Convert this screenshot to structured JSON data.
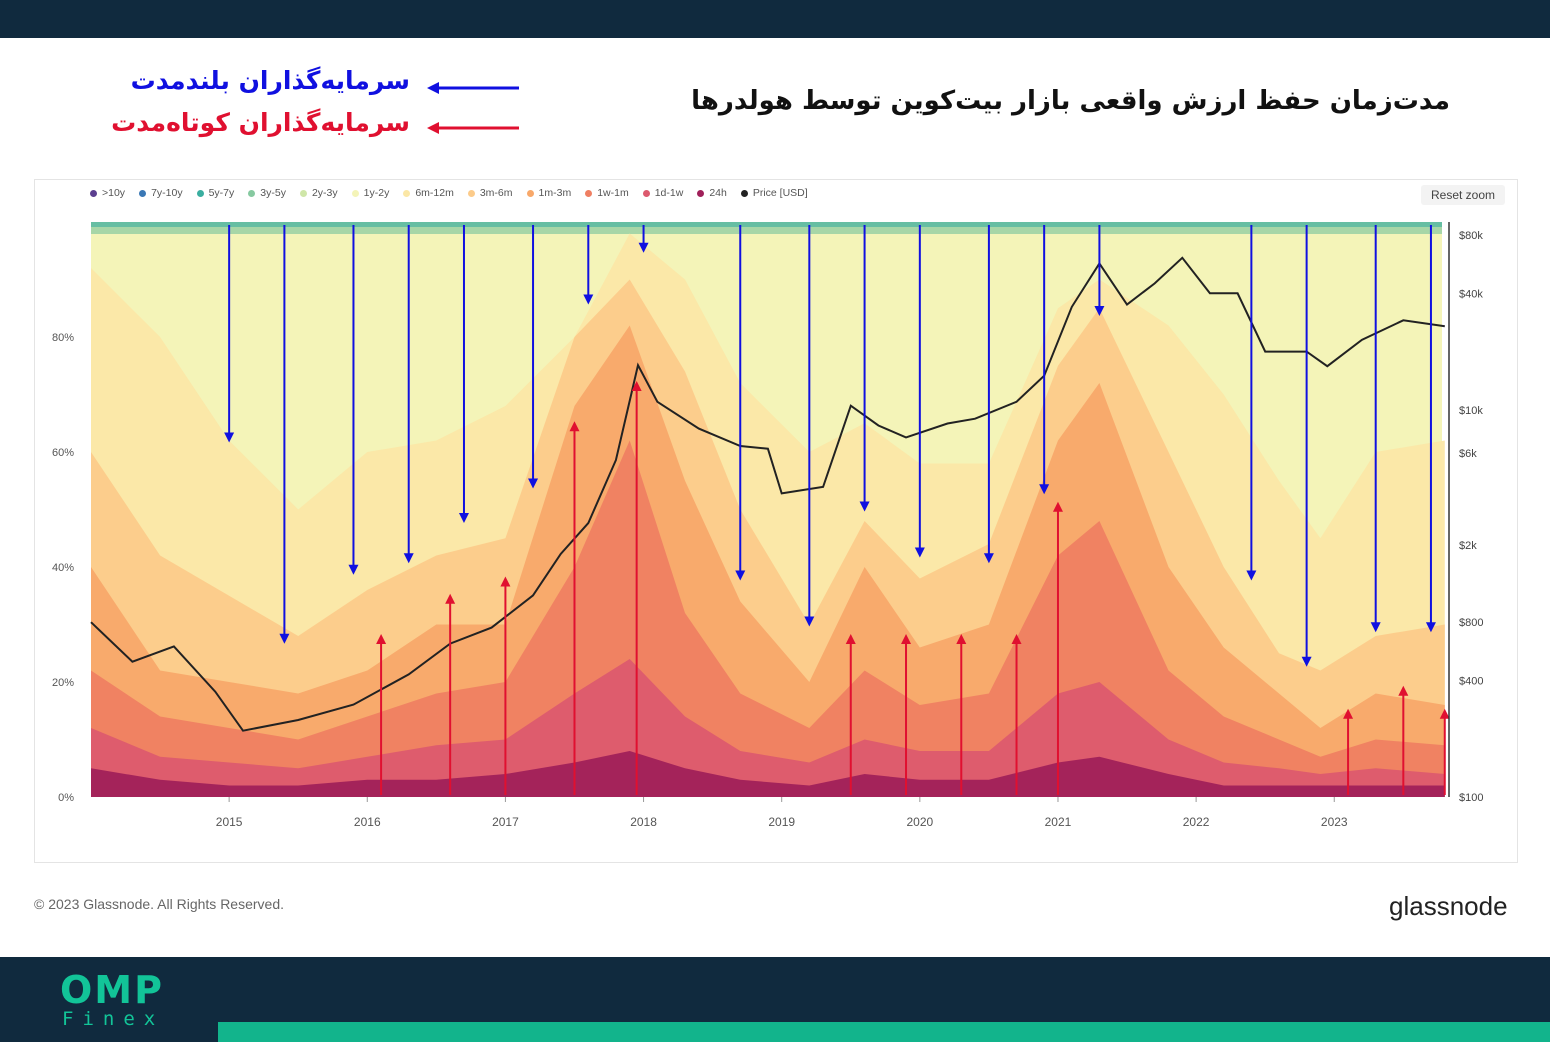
{
  "header": {
    "title": "مدت‌زمان حفظ ارزش واقعی بازار بیت‌کوین توسط هولدرها",
    "long_term_label": "سرمایه‌گذاران بلندمدت",
    "short_term_label": "سرمایه‌گذاران کوتاه‌مدت",
    "long_term_color": "#1010e0",
    "short_term_color": "#e01030"
  },
  "toolbar": {
    "reset_zoom": "Reset zoom"
  },
  "footer": {
    "copyright": "© 2023 Glassnode. All Rights Reserved.",
    "logo": "glassnode",
    "watermark": "glassnode",
    "brand_top": "OMP",
    "brand_bottom": "Finex"
  },
  "chart_data": {
    "type": "area",
    "title": "",
    "legend_position": "top-left",
    "legend": [
      {
        "label": ">10y",
        "color": "#5b3f8f"
      },
      {
        "label": "7y-10y",
        "color": "#3a78b5"
      },
      {
        "label": "5y-7y",
        "color": "#3aaea0"
      },
      {
        "label": "3y-5y",
        "color": "#86c9a0"
      },
      {
        "label": "2y-3y",
        "color": "#cfe6a8"
      },
      {
        "label": "1y-2y",
        "color": "#f4f4b8"
      },
      {
        "label": "6m-12m",
        "color": "#fbe7a6"
      },
      {
        "label": "3m-6m",
        "color": "#fccb8a"
      },
      {
        "label": "1m-3m",
        "color": "#f8a86a"
      },
      {
        "label": "1w-1m",
        "color": "#ef7f62"
      },
      {
        "label": "1d-1w",
        "color": "#dc5a6e"
      },
      {
        "label": "24h",
        "color": "#a0205a"
      },
      {
        "label": "Price [USD]",
        "color": "#222222"
      }
    ],
    "x_ticks": [
      "2015",
      "2016",
      "2017",
      "2018",
      "2019",
      "2020",
      "2021",
      "2022",
      "2023"
    ],
    "y_left_ticks": [
      "80%",
      "60%",
      "40%",
      "20%",
      "0%"
    ],
    "y_left_range": [
      0,
      100
    ],
    "y_right_ticks": [
      "$80k",
      "$40k",
      "$10k",
      "$6k",
      "$2k",
      "$800",
      "$400",
      "$100"
    ],
    "y_right_scale": "log",
    "time_range": [
      "2014-01",
      "2023-10"
    ],
    "band_tops_percent": {
      "dates": [
        "2014.0",
        "2014.5",
        "2015.0",
        "2015.5",
        "2016.0",
        "2016.5",
        "2017.0",
        "2017.5",
        "2017.9",
        "2018.3",
        "2018.7",
        "2019.2",
        "2019.6",
        "2020.0",
        "2020.5",
        "2021.0",
        "2021.3",
        "2021.8",
        "2022.2",
        "2022.6",
        "2022.9",
        "2023.3",
        "2023.8"
      ],
      "6m-12m": [
        92,
        80,
        62,
        50,
        60,
        62,
        68,
        80,
        98,
        90,
        72,
        60,
        65,
        58,
        58,
        85,
        90,
        82,
        70,
        55,
        45,
        60,
        62
      ],
      "3m-6m": [
        60,
        42,
        35,
        28,
        36,
        42,
        45,
        80,
        90,
        74,
        50,
        30,
        48,
        38,
        44,
        75,
        85,
        60,
        40,
        25,
        22,
        28,
        30
      ],
      "1m-3m": [
        40,
        22,
        20,
        18,
        22,
        30,
        30,
        68,
        82,
        55,
        34,
        20,
        40,
        26,
        30,
        62,
        72,
        40,
        26,
        18,
        12,
        18,
        16
      ],
      "1w-1m": [
        22,
        14,
        12,
        10,
        14,
        18,
        20,
        40,
        62,
        32,
        18,
        12,
        22,
        16,
        18,
        42,
        48,
        22,
        14,
        10,
        7,
        10,
        9
      ],
      "1d-1w": [
        12,
        7,
        6,
        5,
        7,
        9,
        10,
        18,
        24,
        14,
        8,
        6,
        10,
        8,
        8,
        18,
        20,
        10,
        6,
        5,
        4,
        5,
        4
      ],
      "24h": [
        5,
        3,
        2,
        2,
        3,
        3,
        4,
        6,
        8,
        5,
        3,
        2,
        4,
        3,
        3,
        6,
        7,
        4,
        2,
        2,
        2,
        2,
        2
      ]
    },
    "price_usd": {
      "dates": [
        "2014.0",
        "2014.3",
        "2014.6",
        "2014.9",
        "2015.1",
        "2015.5",
        "2015.9",
        "2016.3",
        "2016.6",
        "2016.9",
        "2017.2",
        "2017.4",
        "2017.6",
        "2017.8",
        "2017.96",
        "2018.1",
        "2018.4",
        "2018.7",
        "2018.9",
        "2019.0",
        "2019.3",
        "2019.5",
        "2019.7",
        "2019.9",
        "2020.2",
        "2020.4",
        "2020.7",
        "2020.9",
        "2021.1",
        "2021.3",
        "2021.5",
        "2021.7",
        "2021.9",
        "2022.1",
        "2022.3",
        "2022.5",
        "2022.8",
        "2022.95",
        "2023.2",
        "2023.5",
        "2023.8"
      ],
      "values": [
        800,
        500,
        600,
        350,
        220,
        250,
        300,
        430,
        620,
        750,
        1100,
        1800,
        2600,
        5500,
        17000,
        11000,
        8000,
        6500,
        6300,
        3700,
        4000,
        10500,
        8300,
        7200,
        8500,
        9000,
        11000,
        15000,
        34000,
        57000,
        35000,
        45000,
        61000,
        40000,
        40000,
        20000,
        20000,
        16800,
        23000,
        29000,
        27000
      ]
    },
    "long_term_arrows_dates": [
      "2015.0",
      "2015.4",
      "2015.9",
      "2016.3",
      "2016.7",
      "2017.2",
      "2017.6",
      "2018.0",
      "2018.7",
      "2019.2",
      "2019.6",
      "2020.0",
      "2020.5",
      "2020.9",
      "2021.3",
      "2022.4",
      "2022.8",
      "2023.3",
      "2023.7"
    ],
    "short_term_arrows_dates": [
      "2016.1",
      "2016.6",
      "2017.0",
      "2017.5",
      "2017.95",
      "2019.5",
      "2019.9",
      "2020.3",
      "2020.7",
      "2021.0",
      "2023.1",
      "2023.5",
      "2023.8"
    ],
    "short_term_arrow_heights_percent": [
      28,
      35,
      38,
      65,
      72,
      28,
      28,
      28,
      28,
      51,
      15,
      19,
      15
    ]
  }
}
